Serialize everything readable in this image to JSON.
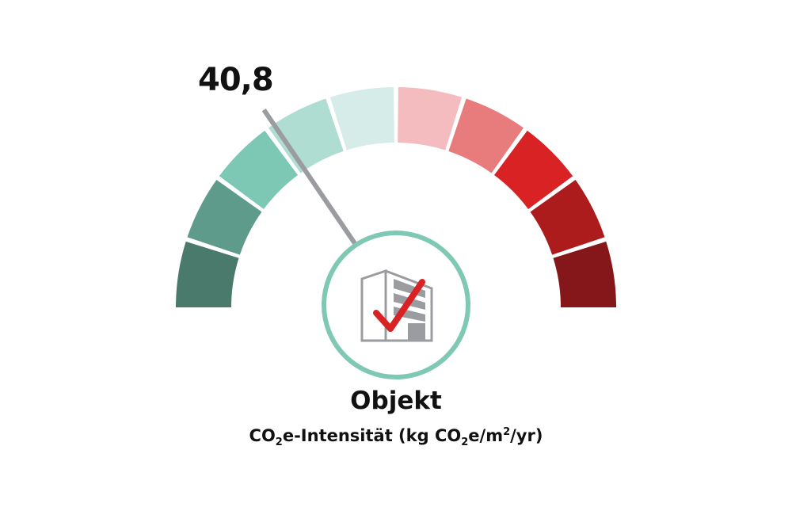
{
  "chart_data": {
    "type": "gauge",
    "value_label": "40,8",
    "value_fraction": 0.2,
    "segment_count": 10,
    "segment_colors": [
      "#4a7a6c",
      "#5f9b8a",
      "#7cc8b5",
      "#b0ddd2",
      "#d6ece8",
      "#f4bcbe",
      "#e87b7c",
      "#d92223",
      "#ac1c1d",
      "#85161a"
    ],
    "needle_color": "#9a9ca0",
    "ring_color": "#7fc8b4",
    "icon": "building-check-icon",
    "title": "Objekt",
    "subtitle_parts": {
      "a": "CO",
      "a_sub": "2",
      "b": "e-Intensität (kg CO",
      "b_sub": "2",
      "c": "e/m",
      "c_sup": "2",
      "d": "/yr)"
    }
  }
}
